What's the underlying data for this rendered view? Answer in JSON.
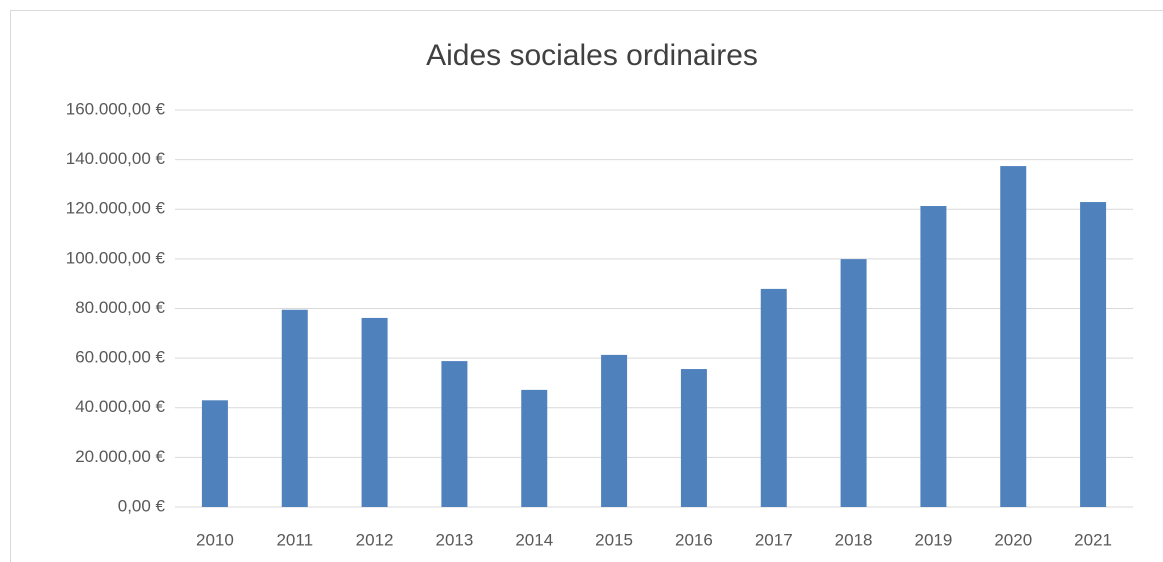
{
  "chart_data": {
    "type": "bar",
    "title": "Aides sociales ordinaires",
    "categories": [
      "2010",
      "2011",
      "2012",
      "2013",
      "2014",
      "2015",
      "2016",
      "2017",
      "2018",
      "2019",
      "2020",
      "2021"
    ],
    "values": [
      43000,
      79500,
      76200,
      58800,
      47200,
      61300,
      55600,
      87900,
      99900,
      121300,
      137400,
      122900
    ],
    "color": "#4f81bd",
    "ylim": [
      0,
      160000
    ],
    "yticks": [
      {
        "value": 0,
        "label": "0,00 €"
      },
      {
        "value": 20000,
        "label": "20.000,00 €"
      },
      {
        "value": 40000,
        "label": "40.000,00 €"
      },
      {
        "value": 60000,
        "label": "60.000,00 €"
      },
      {
        "value": 80000,
        "label": "80.000,00 €"
      },
      {
        "value": 100000,
        "label": "100.000,00 €"
      },
      {
        "value": 120000,
        "label": "120.000,00 €"
      },
      {
        "value": 140000,
        "label": "140.000,00 €"
      },
      {
        "value": 160000,
        "label": "160.000,00 €"
      }
    ],
    "grid": true
  }
}
